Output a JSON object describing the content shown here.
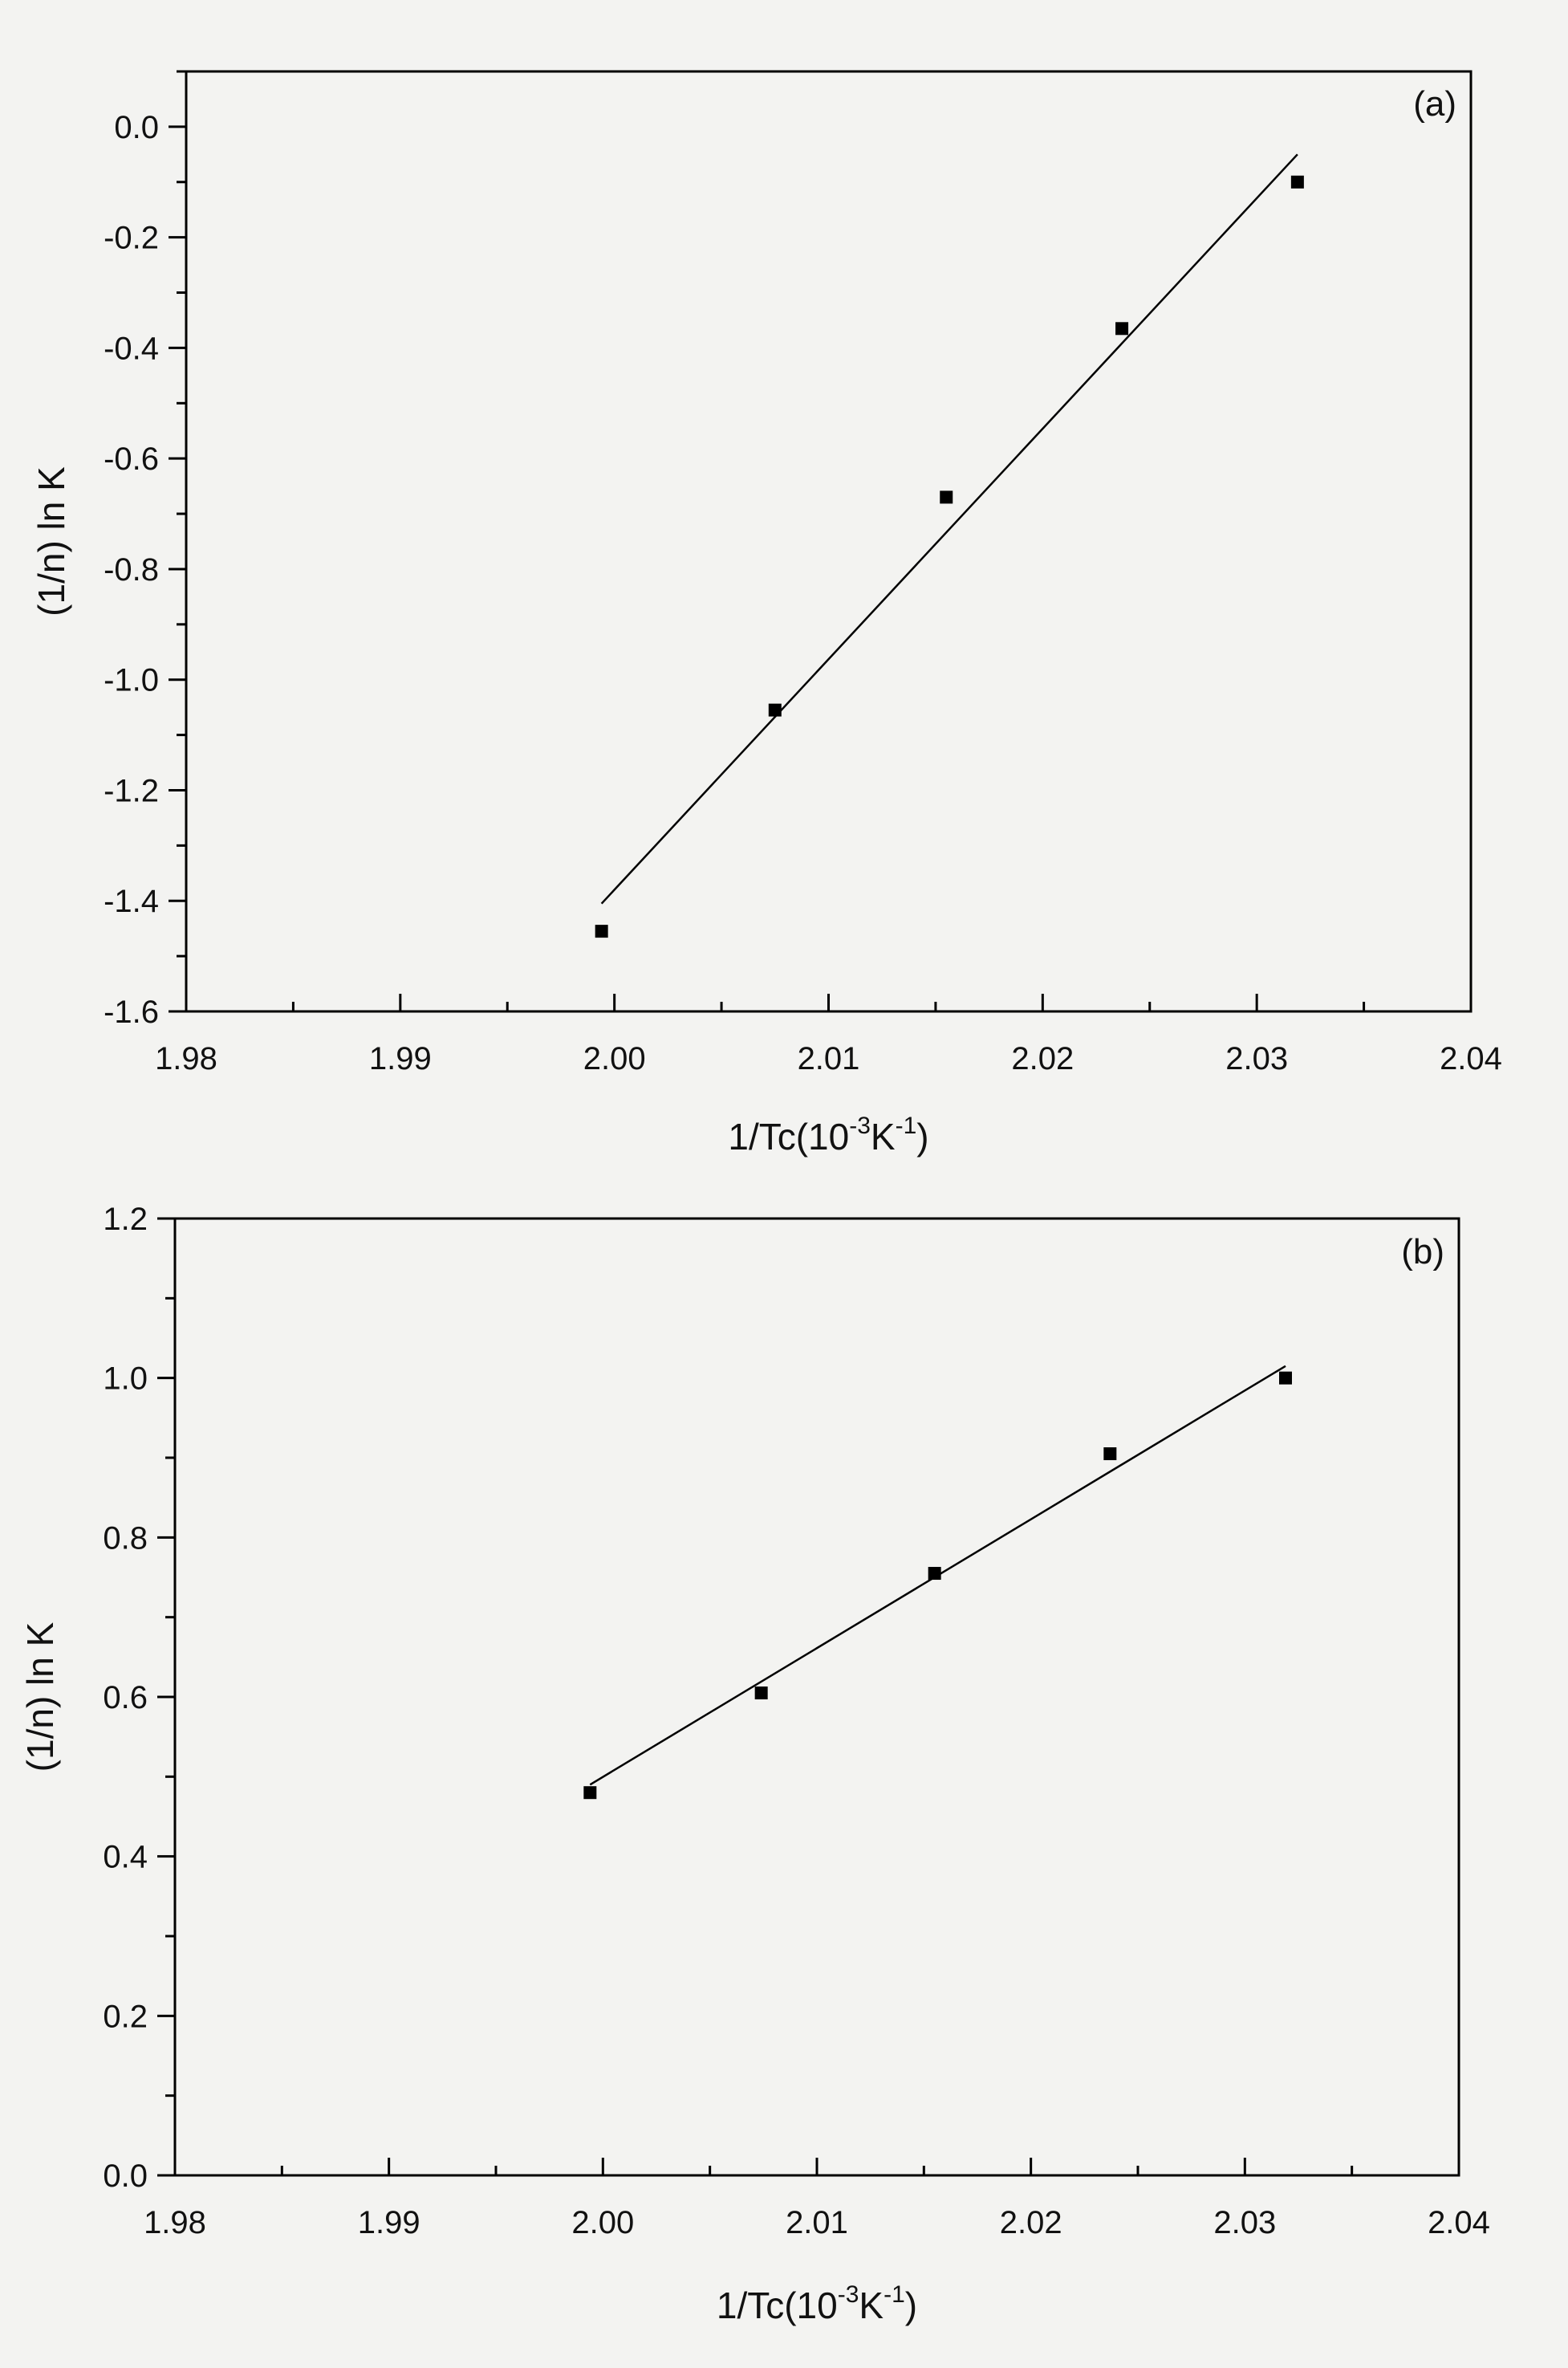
{
  "chart_data": [
    {
      "type": "scatter",
      "panel_label": "(a)",
      "xlabel": {
        "main": "1/Tc(10",
        "sup1": "-3",
        "mid": "K",
        "sup2": "-1",
        "end": ")"
      },
      "ylabel": "(1/n) ln K",
      "xlim": [
        1.98,
        2.04
      ],
      "ylim": [
        -1.6,
        0.1
      ],
      "xticks": [
        1.98,
        1.99,
        2.0,
        2.01,
        2.02,
        2.03,
        2.04
      ],
      "xtick_labels": [
        "1.98",
        "1.99",
        "2.00",
        "2.01",
        "2.02",
        "2.03",
        "2.04"
      ],
      "yticks": [
        -1.6,
        -1.4,
        -1.2,
        -1.0,
        -0.8,
        -0.6,
        -0.4,
        -0.2,
        0.0
      ],
      "ytick_labels": [
        "-1.6",
        "-1.4",
        "-1.2",
        "-1.0",
        "-0.8",
        "-0.6",
        "-0.4",
        "-0.2",
        "0.0"
      ],
      "grid": false,
      "series": [
        {
          "x": [
            1.9994,
            2.0075,
            2.0155,
            2.0237,
            2.0319
          ],
          "y": [
            -1.455,
            -1.055,
            -0.67,
            -0.365,
            -0.1
          ]
        }
      ],
      "fit_line": {
        "x": [
          1.9994,
          2.0319
        ],
        "y": [
          -1.405,
          -0.05
        ]
      },
      "colors": {
        "marker": "#000000",
        "line": "#000000",
        "axes": "#000000"
      }
    },
    {
      "type": "scatter",
      "panel_label": "(b)",
      "xlabel": {
        "main": "1/Tc(10",
        "sup1": "-3",
        "mid": "K",
        "sup2": "-1",
        "end": ")"
      },
      "ylabel": "(1/n) ln K",
      "xlim": [
        1.98,
        2.04
      ],
      "ylim": [
        0.0,
        1.2
      ],
      "xticks": [
        1.98,
        1.99,
        2.0,
        2.01,
        2.02,
        2.03,
        2.04
      ],
      "xtick_labels": [
        "1.98",
        "1.99",
        "2.00",
        "2.01",
        "2.02",
        "2.03",
        "2.04"
      ],
      "yticks": [
        0.0,
        0.2,
        0.4,
        0.6,
        0.8,
        1.0,
        1.2
      ],
      "ytick_labels": [
        "0.0",
        "0.2",
        "0.4",
        "0.6",
        "0.8",
        "1.0",
        "1.2"
      ],
      "grid": false,
      "series": [
        {
          "x": [
            1.9994,
            2.0074,
            2.0155,
            2.0237,
            2.0319
          ],
          "y": [
            0.48,
            0.605,
            0.755,
            0.905,
            1.0
          ]
        }
      ],
      "fit_line": {
        "x": [
          1.9994,
          2.0319
        ],
        "y": [
          0.49,
          1.015
        ]
      },
      "colors": {
        "marker": "#000000",
        "line": "#000000",
        "axes": "#000000"
      }
    }
  ]
}
